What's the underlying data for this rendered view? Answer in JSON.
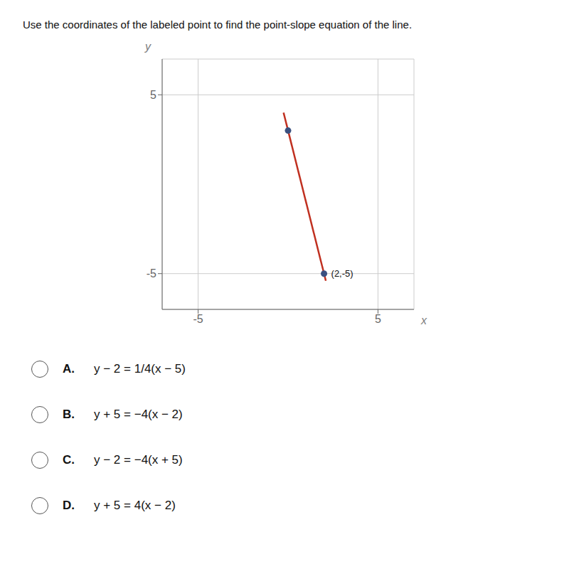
{
  "chart_data": {
    "type": "line",
    "title": "Use the coordinates of the labeled point to find the point-slope equation of the line.",
    "x_label": "x",
    "y_label": "y",
    "xlim": [
      -7,
      7
    ],
    "ylim": [
      -7,
      7
    ],
    "xticks": [
      -5,
      5
    ],
    "yticks": [
      -5,
      5
    ],
    "grid": true,
    "series": [
      {
        "type": "line",
        "color": "#c03020",
        "x": [
          -0.25,
          2.1
        ],
        "values": [
          4,
          -5.4
        ]
      },
      {
        "type": "scatter",
        "color": "#3a5080",
        "x": [
          2,
          0
        ],
        "values": [
          -5,
          3
        ]
      }
    ],
    "annotations": [
      {
        "text": "(2,-5)",
        "x": 2,
        "y": -5
      },
      {
        "label": "A.",
        "text": "y − 2 = 1/4(x − 5)"
      },
      {
        "label": "B.",
        "text": "y + 5 = −4(x − 2)"
      },
      {
        "label": "C.",
        "text": "y − 2 = −4(x + 5)"
      },
      {
        "label": "D.",
        "text": "y + 5 = 4(x − 2)"
      }
    ]
  }
}
